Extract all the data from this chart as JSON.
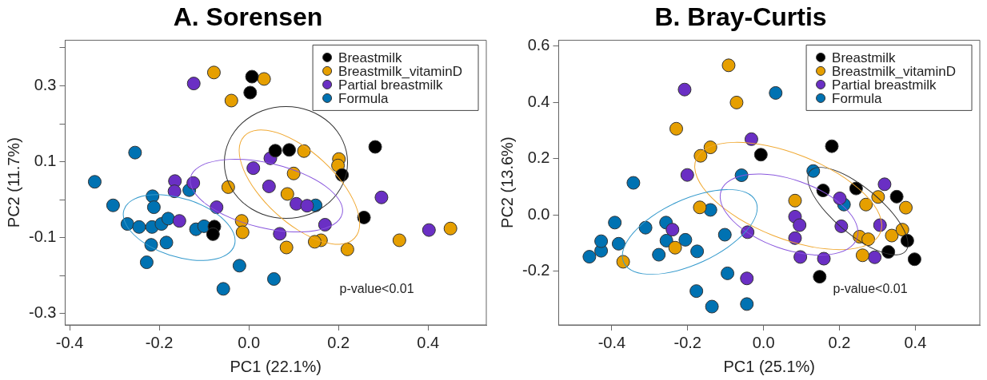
{
  "chart_data": [
    {
      "type": "scatter",
      "title": "A. Sorensen",
      "xlabel": "PC1 (22.1%)",
      "ylabel": "PC2 (11.7%)",
      "xlim": [
        -0.41,
        0.53
      ],
      "ylim": [
        -0.33,
        0.42
      ],
      "xticks": [
        -0.4,
        -0.2,
        {
          "value": 0,
          "label": "0.0"
        },
        0.2,
        0.4
      ],
      "yticks": [
        {
          "value": 0.4,
          "label": null
        },
        0.3,
        {
          "value": 0.2,
          "label": null
        },
        0.1,
        {
          "value": 0,
          "label": null
        },
        -0.1,
        {
          "value": -0.2,
          "label": null
        },
        -0.3
      ],
      "grid": false,
      "legend": "top right",
      "marker": "circle",
      "annotations": [
        "p-value<0.01"
      ],
      "series": [
        {
          "name": "Breastmilk",
          "color": "#000000",
          "x": [
            0.007,
            0.003,
            0.059,
            0.09,
            0.208,
            0.282,
            0.257,
            -0.077,
            -0.08
          ],
          "values": [
            0.324,
            0.282,
            0.129,
            0.131,
            0.065,
            0.139,
            -0.047,
            -0.071,
            -0.091
          ]
        },
        {
          "name": "Breastmilk_vitaminD",
          "color": "#e69f00",
          "x": [
            -0.078,
            -0.039,
            -0.046,
            -0.016,
            -0.014,
            0.034,
            0.123,
            0.201,
            0.199,
            0.1,
            0.086,
            0.161,
            0.147,
            0.084,
            0.22,
            0.336,
            0.45
          ],
          "values": [
            0.335,
            0.261,
            0.033,
            -0.056,
            -0.086,
            0.318,
            0.128,
            0.107,
            0.09,
            0.069,
            0.015,
            -0.107,
            -0.111,
            -0.126,
            -0.131,
            -0.107,
            -0.076
          ]
        },
        {
          "name": "Partial breastmilk",
          "color": "#6a2fc4",
          "x": [
            -0.123,
            -0.165,
            -0.166,
            -0.124,
            -0.072,
            -0.155,
            0.01,
            0.048,
            0.045,
            0.106,
            0.13,
            0.17,
            0.069,
            0.296,
            0.402
          ],
          "values": [
            0.306,
            0.049,
            0.022,
            0.044,
            -0.02,
            -0.056,
            0.083,
            0.109,
            0.035,
            -0.011,
            -0.016,
            -0.066,
            -0.09,
            0.006,
            -0.08
          ]
        },
        {
          "name": "Formula",
          "color": "#0072b2",
          "x": [
            -0.344,
            -0.254,
            -0.303,
            -0.215,
            -0.212,
            -0.133,
            -0.271,
            -0.245,
            -0.216,
            -0.195,
            -0.18,
            -0.218,
            -0.184,
            -0.228,
            -0.118,
            -0.1,
            -0.021,
            -0.057,
            0.149,
            0.056
          ],
          "values": [
            0.047,
            0.124,
            -0.015,
            0.009,
            -0.02,
            0.025,
            -0.064,
            -0.072,
            -0.072,
            -0.064,
            -0.05,
            -0.119,
            -0.113,
            -0.165,
            -0.078,
            -0.07,
            -0.174,
            -0.235,
            -0.015,
            -0.209
          ]
        }
      ]
    },
    {
      "type": "scatter",
      "title": "B. Bray-Curtis",
      "xlabel": "PC1 (25.1%)",
      "ylabel": "PC2 (13.6%)",
      "xlim": [
        -0.54,
        0.57
      ],
      "ylim": [
        -0.39,
        0.62
      ],
      "xticks": [
        -0.4,
        -0.2,
        {
          "value": 0,
          "label": "0.0"
        },
        0.2,
        0.4
      ],
      "yticks": [
        -0.2,
        {
          "value": 0,
          "label": "0.0"
        },
        0.2,
        0.4,
        0.6
      ],
      "grid": false,
      "legend": "top right",
      "marker": "circle",
      "annotations": [
        "p-value<0.01"
      ],
      "series": [
        {
          "name": "Breastmilk",
          "color": "#000000",
          "x": [
            -0.007,
            0.18,
            0.157,
            0.244,
            0.351,
            0.379,
            0.329,
            0.398,
            0.148
          ],
          "values": [
            0.214,
            0.244,
            0.087,
            0.094,
            0.065,
            -0.091,
            -0.131,
            -0.157,
            -0.219
          ]
        },
        {
          "name": "Breastmilk_vitaminD",
          "color": "#e69f00",
          "x": [
            -0.092,
            -0.071,
            -0.23,
            -0.166,
            -0.14,
            -0.168,
            -0.233,
            -0.37,
            0.083,
            0.253,
            0.276,
            0.261,
            0.27,
            0.302,
            0.338,
            0.366,
            0.375
          ],
          "values": [
            0.531,
            0.399,
            0.306,
            0.21,
            0.24,
            0.027,
            -0.116,
            -0.166,
            0.051,
            -0.077,
            -0.086,
            -0.143,
            0.037,
            0.064,
            -0.073,
            -0.052,
            0.026
          ]
        },
        {
          "name": "Partial breastmilk",
          "color": "#6a2fc4",
          "x": [
            -0.208,
            -0.201,
            -0.24,
            -0.042,
            -0.044,
            -0.032,
            0.083,
            0.095,
            0.083,
            0.097,
            0.159,
            0.201,
            0.205,
            0.293,
            0.307,
            0.319
          ],
          "values": [
            0.445,
            0.142,
            -0.052,
            -0.061,
            -0.225,
            0.269,
            -0.006,
            -0.036,
            -0.082,
            -0.149,
            -0.155,
            0.059,
            -0.04,
            -0.15,
            -0.036,
            0.109
          ]
        },
        {
          "name": "Formula",
          "color": "#0072b2",
          "x": [
            -0.459,
            -0.428,
            -0.428,
            -0.392,
            -0.382,
            -0.343,
            -0.311,
            -0.257,
            -0.256,
            -0.276,
            -0.206,
            -0.175,
            -0.14,
            -0.102,
            -0.095,
            -0.177,
            -0.136,
            -0.058,
            -0.044,
            0.032,
            0.131,
            0.212
          ],
          "values": [
            -0.148,
            -0.127,
            -0.093,
            -0.027,
            -0.102,
            0.114,
            -0.045,
            -0.027,
            -0.091,
            -0.141,
            -0.088,
            -0.129,
            0.018,
            -0.07,
            -0.207,
            -0.27,
            -0.325,
            0.141,
            -0.316,
            0.433,
            0.156,
            0.037
          ]
        }
      ]
    }
  ]
}
